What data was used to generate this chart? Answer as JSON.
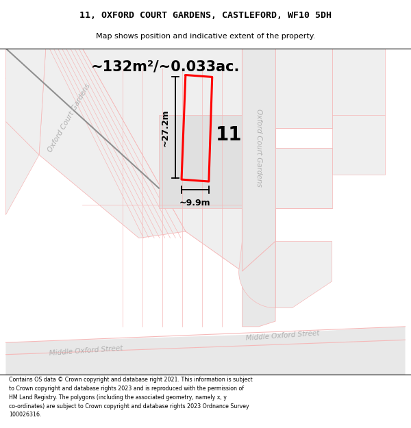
{
  "title_line1": "11, OXFORD COURT GARDENS, CASTLEFORD, WF10 5DH",
  "title_line2": "Map shows position and indicative extent of the property.",
  "area_text": "~132m²/~0.033ac.",
  "number_label": "11",
  "dim_width": "~9.9m",
  "dim_height": "~27.2m",
  "street_bottom_left": "Middle Oxford Street",
  "street_bottom_right": "Middle Oxford Street",
  "street_right": "Oxford Court Gardens",
  "street_left": "Oxford Court Gardens",
  "footer_text": "Contains OS data © Crown copyright and database right 2021. This information is subject\nto Crown copyright and database rights 2023 and is reproduced with the permission of\nHM Land Registry. The polygons (including the associated geometry, namely x, y\nco-ordinates) are subject to Crown copyright and database rights 2023 Ordnance Survey\n100026316.",
  "rc": "#f5b8b8",
  "road_fill": "#e8e8e8",
  "block_light": "#efefef",
  "block_mid": "#e0e0e0",
  "white": "#ffffff",
  "red": "#ff0000",
  "black": "#000000",
  "street_color": "#b0b0b0",
  "diag_road_color": "#909090"
}
